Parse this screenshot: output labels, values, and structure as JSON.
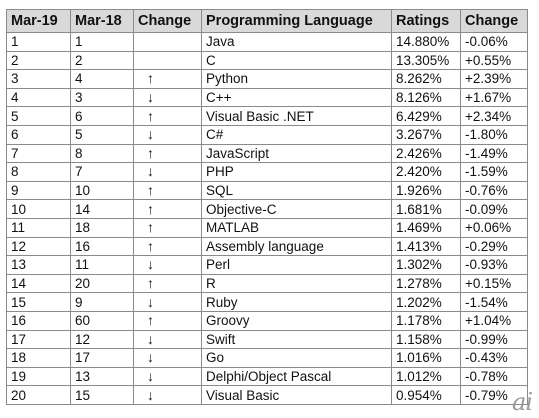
{
  "columns": [
    "Mar-19",
    "Mar-18",
    "Change",
    "Programming Language",
    "Ratings",
    "Change"
  ],
  "rows": [
    {
      "mar19": "1",
      "mar18": "1",
      "change": "",
      "language": "Java",
      "ratings": "14.880%",
      "delta": "-0.06%"
    },
    {
      "mar19": "2",
      "mar18": "2",
      "change": "",
      "language": "C",
      "ratings": "13.305%",
      "delta": "+0.55%"
    },
    {
      "mar19": "3",
      "mar18": "4",
      "change": "↑",
      "language": "Python",
      "ratings": "8.262%",
      "delta": "+2.39%"
    },
    {
      "mar19": "4",
      "mar18": "3",
      "change": "↓",
      "language": "C++",
      "ratings": "8.126%",
      "delta": "+1.67%"
    },
    {
      "mar19": "5",
      "mar18": "6",
      "change": "↑",
      "language": "Visual Basic .NET",
      "ratings": "6.429%",
      "delta": "+2.34%"
    },
    {
      "mar19": "6",
      "mar18": "5",
      "change": "↓",
      "language": "C#",
      "ratings": "3.267%",
      "delta": "-1.80%"
    },
    {
      "mar19": "7",
      "mar18": "8",
      "change": "↑",
      "language": "JavaScript",
      "ratings": "2.426%",
      "delta": "-1.49%"
    },
    {
      "mar19": "8",
      "mar18": "7",
      "change": "↓",
      "language": "PHP",
      "ratings": "2.420%",
      "delta": "-1.59%"
    },
    {
      "mar19": "9",
      "mar18": "10",
      "change": "↑",
      "language": "SQL",
      "ratings": "1.926%",
      "delta": "-0.76%"
    },
    {
      "mar19": "10",
      "mar18": "14",
      "change": "↑",
      "language": "Objective-C",
      "ratings": "1.681%",
      "delta": "-0.09%"
    },
    {
      "mar19": "11",
      "mar18": "18",
      "change": "↑",
      "language": "MATLAB",
      "ratings": "1.469%",
      "delta": "+0.06%"
    },
    {
      "mar19": "12",
      "mar18": "16",
      "change": "↑",
      "language": "Assembly language",
      "ratings": "1.413%",
      "delta": "-0.29%"
    },
    {
      "mar19": "13",
      "mar18": "11",
      "change": "↓",
      "language": "Perl",
      "ratings": "1.302%",
      "delta": "-0.93%"
    },
    {
      "mar19": "14",
      "mar18": "20",
      "change": "↑",
      "language": "R",
      "ratings": "1.278%",
      "delta": "+0.15%"
    },
    {
      "mar19": "15",
      "mar18": "9",
      "change": "↓",
      "language": "Ruby",
      "ratings": "1.202%",
      "delta": "-1.54%"
    },
    {
      "mar19": "16",
      "mar18": "60",
      "change": "↑",
      "language": "Groovy",
      "ratings": "1.178%",
      "delta": "+1.04%"
    },
    {
      "mar19": "17",
      "mar18": "12",
      "change": "↓",
      "language": "Swift",
      "ratings": "1.158%",
      "delta": "-0.99%"
    },
    {
      "mar19": "18",
      "mar18": "17",
      "change": "↓",
      "language": "Go",
      "ratings": "1.016%",
      "delta": "-0.43%"
    },
    {
      "mar19": "19",
      "mar18": "13",
      "change": "↓",
      "language": "Delphi/Object Pascal",
      "ratings": "1.012%",
      "delta": "-0.78%"
    },
    {
      "mar19": "20",
      "mar18": "15",
      "change": "↓",
      "language": "Visual Basic",
      "ratings": "0.954%",
      "delta": "-0.79%"
    }
  ],
  "watermark": "ai"
}
